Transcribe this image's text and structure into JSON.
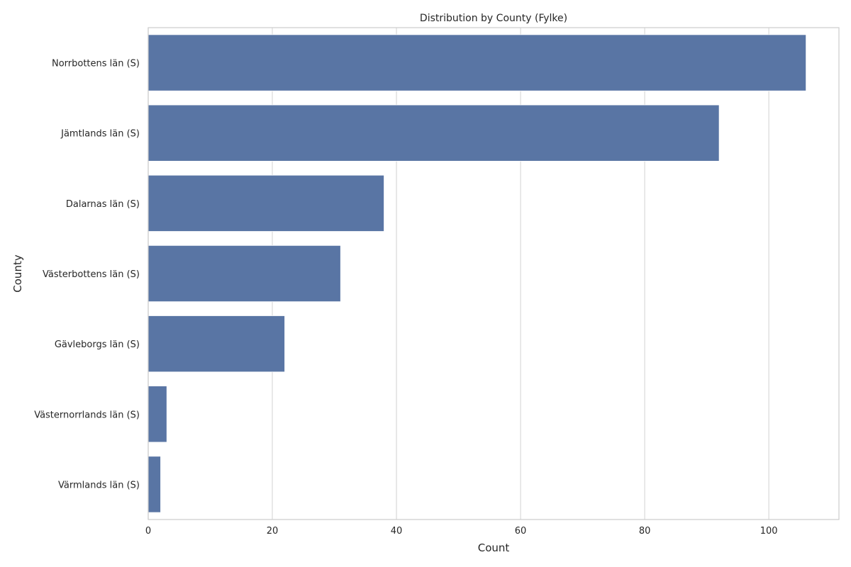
{
  "chart_data": {
    "type": "bar",
    "orientation": "horizontal",
    "title": "Distribution by County (Fylke)",
    "xlabel": "Count",
    "ylabel": "County",
    "categories": [
      "Norrbottens län (S)",
      "Jämtlands län (S)",
      "Dalarnas län (S)",
      "Västerbottens län (S)",
      "Gävleborgs län (S)",
      "Västernorrlands län (S)",
      "Värmlands län (S)"
    ],
    "values": [
      106,
      92,
      38,
      31,
      22,
      3,
      2
    ],
    "xlim": [
      0,
      111.3
    ],
    "xticks": [
      0,
      20,
      40,
      60,
      80,
      100
    ],
    "grid": "vertical",
    "legend": "none"
  },
  "colors": {
    "bar": "#5975a4",
    "grid": "#d9d9d9",
    "frame": "#cccccc",
    "text": "#262626"
  }
}
